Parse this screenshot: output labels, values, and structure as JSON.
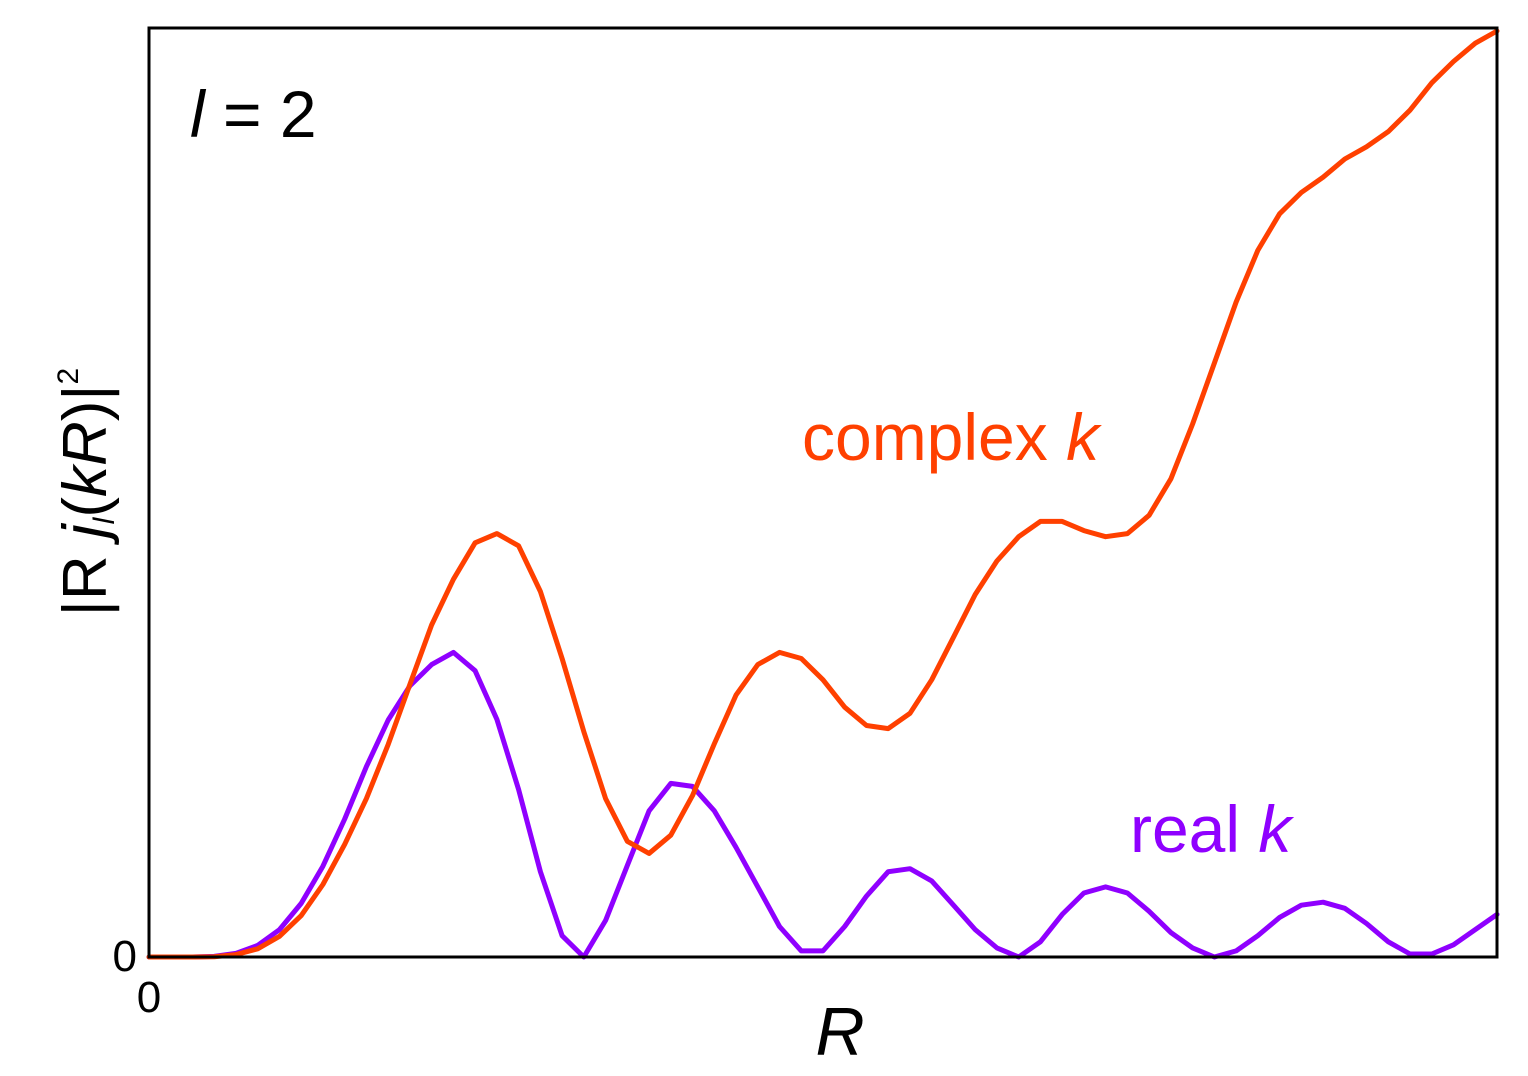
{
  "chart_data": {
    "type": "line",
    "xlabel": "R",
    "ylabel": {
      "pre": "|R ",
      "func": "j",
      "sub": "l",
      "arg_open": "(",
      "arg_k": "k",
      "arg_R": "R",
      "arg_close": ")|",
      "sup": "2"
    },
    "annotation": {
      "var": "l",
      "rest": " = 2"
    },
    "xticks": [
      {
        "value": 0,
        "label": "0"
      }
    ],
    "yticks": [
      {
        "value": 0,
        "label": "0"
      }
    ],
    "xlim": [
      0,
      12.4
    ],
    "ylim": [
      0,
      3.05
    ],
    "grid": false,
    "legend": "none",
    "series": [
      {
        "label_text": "real ",
        "label_var": "k",
        "color": "#8f00ff",
        "x": [
          0.0,
          0.2,
          0.4,
          0.6,
          0.8,
          1.0,
          1.2,
          1.4,
          1.6,
          1.8,
          2.0,
          2.2,
          2.4,
          2.6,
          2.8,
          3.0,
          3.2,
          3.4,
          3.6,
          3.8,
          4.0,
          4.2,
          4.4,
          4.6,
          4.8,
          5.0,
          5.2,
          5.4,
          5.6,
          5.8,
          6.0,
          6.2,
          6.4,
          6.6,
          6.8,
          7.0,
          7.2,
          7.4,
          7.6,
          7.8,
          8.0,
          8.2,
          8.4,
          8.6,
          8.8,
          9.0,
          9.2,
          9.4,
          9.6,
          9.8,
          10.0,
          10.2,
          10.4,
          10.6,
          10.8,
          11.0,
          11.2,
          11.4,
          11.6,
          11.8,
          12.0,
          12.2,
          12.4
        ],
        "y": [
          0.0,
          0.0,
          0.0,
          0.002,
          0.012,
          0.038,
          0.09,
          0.176,
          0.298,
          0.453,
          0.625,
          0.778,
          0.89,
          0.96,
          1.0,
          0.94,
          0.78,
          0.55,
          0.28,
          0.07,
          0.0,
          0.12,
          0.3,
          0.48,
          0.57,
          0.56,
          0.48,
          0.36,
          0.23,
          0.1,
          0.02,
          0.02,
          0.1,
          0.2,
          0.28,
          0.29,
          0.25,
          0.17,
          0.09,
          0.03,
          0.0,
          0.05,
          0.14,
          0.21,
          0.23,
          0.21,
          0.15,
          0.08,
          0.03,
          0.0,
          0.02,
          0.07,
          0.13,
          0.17,
          0.18,
          0.16,
          0.11,
          0.05,
          0.01,
          0.01,
          0.04,
          0.09,
          0.14
        ]
      },
      {
        "label_text": "complex ",
        "label_var": "k",
        "color": "#ff4000",
        "x": [
          0.0,
          0.2,
          0.4,
          0.6,
          0.8,
          1.0,
          1.2,
          1.4,
          1.6,
          1.8,
          2.0,
          2.2,
          2.4,
          2.6,
          2.8,
          3.0,
          3.2,
          3.4,
          3.6,
          3.8,
          4.0,
          4.2,
          4.4,
          4.6,
          4.8,
          5.0,
          5.2,
          5.4,
          5.6,
          5.8,
          6.0,
          6.2,
          6.4,
          6.6,
          6.8,
          7.0,
          7.2,
          7.4,
          7.6,
          7.8,
          8.0,
          8.2,
          8.4,
          8.6,
          8.8,
          9.0,
          9.2,
          9.4,
          9.6,
          9.8,
          10.0,
          10.2,
          10.4,
          10.6,
          10.8,
          11.0,
          11.2,
          11.4,
          11.6,
          11.8,
          12.0,
          12.2,
          12.4
        ],
        "y": [
          0.0,
          0.0,
          0.0,
          0.001,
          0.008,
          0.027,
          0.068,
          0.136,
          0.238,
          0.37,
          0.52,
          0.698,
          0.895,
          1.09,
          1.24,
          1.36,
          1.39,
          1.35,
          1.2,
          0.98,
          0.74,
          0.52,
          0.38,
          0.34,
          0.4,
          0.53,
          0.7,
          0.86,
          0.96,
          1.0,
          0.98,
          0.91,
          0.82,
          0.76,
          0.75,
          0.8,
          0.91,
          1.05,
          1.19,
          1.3,
          1.38,
          1.43,
          1.43,
          1.4,
          1.38,
          1.39,
          1.45,
          1.57,
          1.75,
          1.95,
          2.15,
          2.32,
          2.44,
          2.51,
          2.56,
          2.62,
          2.66,
          2.71,
          2.78,
          2.87,
          2.94,
          3.0,
          3.04
        ]
      }
    ]
  }
}
